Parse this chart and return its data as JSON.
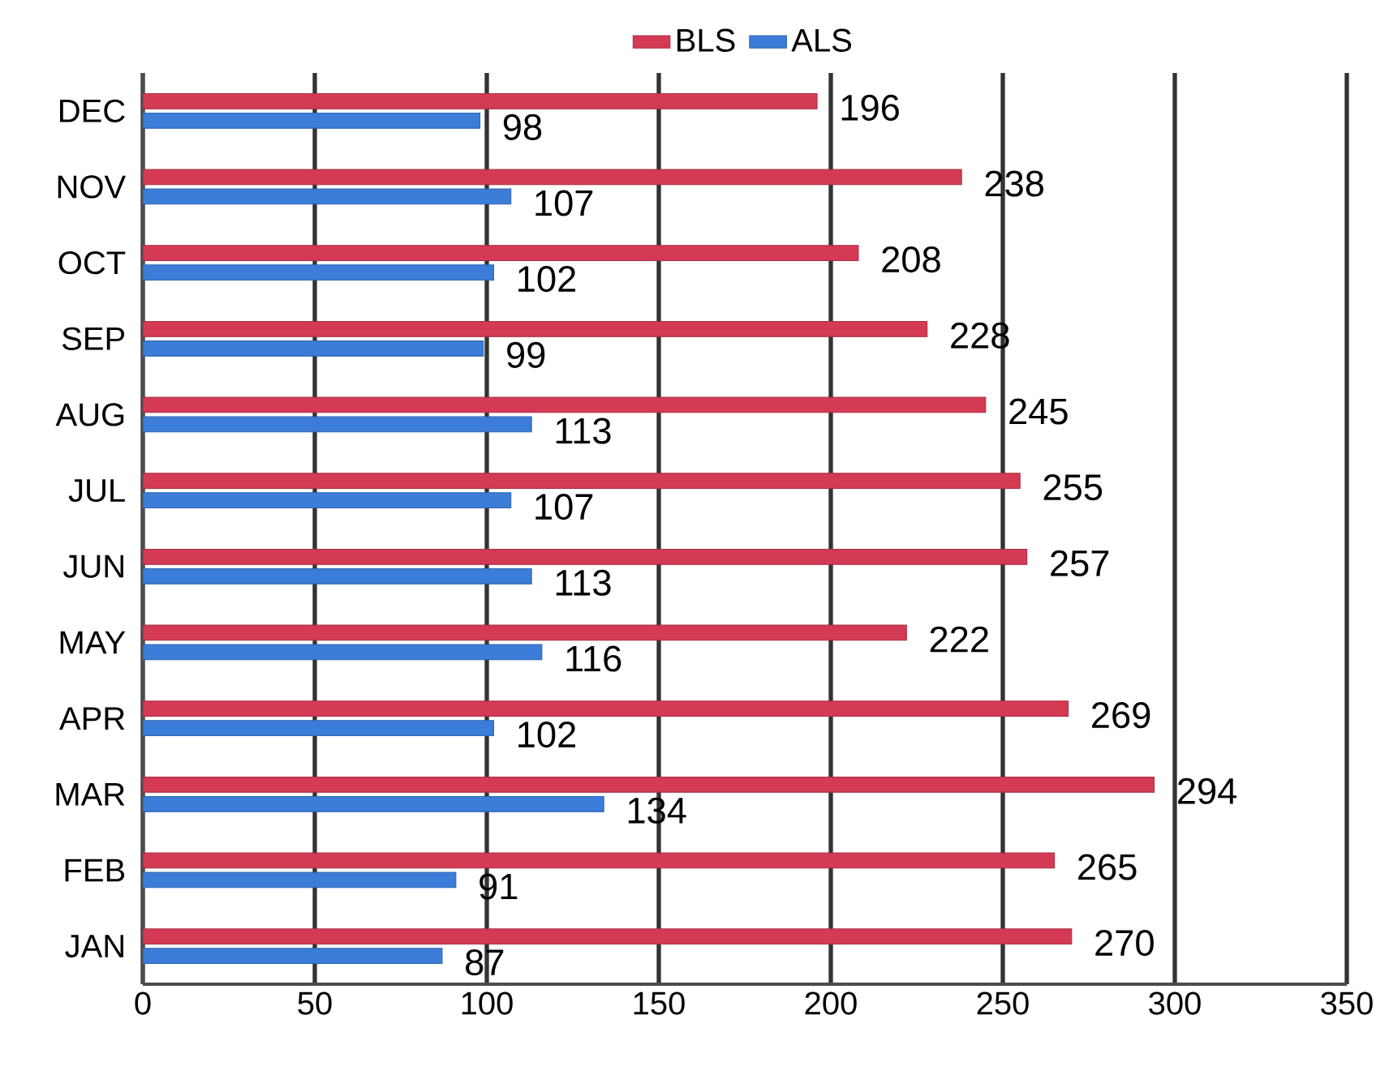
{
  "chart_data": {
    "type": "bar",
    "orientation": "horizontal",
    "categories": [
      "DEC",
      "NOV",
      "OCT",
      "SEP",
      "AUG",
      "JUL",
      "JUN",
      "MAY",
      "APR",
      "MAR",
      "FEB",
      "JAN"
    ],
    "series": [
      {
        "name": "BLS",
        "color": "#d43a54",
        "values": [
          196,
          238,
          208,
          228,
          245,
          255,
          257,
          222,
          269,
          294,
          265,
          270
        ]
      },
      {
        "name": "ALS",
        "color": "#3b7dd8",
        "values": [
          98,
          107,
          102,
          99,
          113,
          107,
          113,
          116,
          102,
          134,
          91,
          87
        ]
      }
    ],
    "xlim": [
      0,
      350
    ],
    "xticks": [
      0,
      50,
      100,
      150,
      200,
      250,
      300,
      350
    ],
    "grid": "x",
    "legend": "top",
    "data_labels": true
  }
}
